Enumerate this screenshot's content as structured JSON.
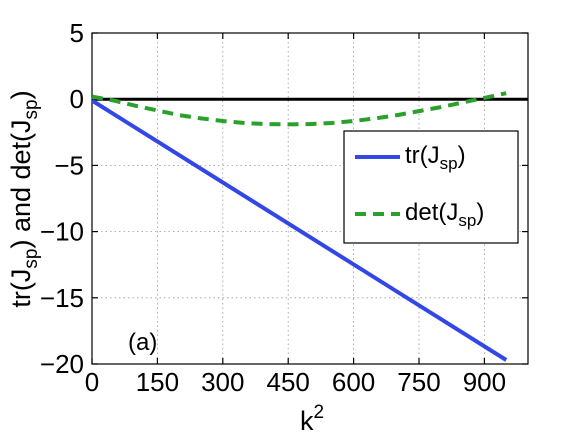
{
  "chart_data": {
    "type": "line",
    "title": "",
    "panel_label": "(a)",
    "xlabel": {
      "base": "k",
      "sup": "2"
    },
    "ylabel": {
      "prefix": "tr(J",
      "sub1": "sp",
      "middle": ") and det(J",
      "sub2": "sp",
      "suffix": ")"
    },
    "xlim": [
      0,
      1000
    ],
    "ylim": [
      -20,
      5
    ],
    "xticks": [
      0,
      150,
      300,
      450,
      600,
      750,
      900
    ],
    "yticks": [
      5,
      0,
      -5,
      -10,
      -15,
      -20
    ],
    "xtick_labels": [
      "0",
      "150",
      "300",
      "450",
      "600",
      "750",
      "900"
    ],
    "ytick_labels": [
      "5",
      "0",
      "−5",
      "−10",
      "−15",
      "−20"
    ],
    "grid": true,
    "legend_position": "center-right",
    "zero_line": {
      "y": 0,
      "color": "#000000"
    },
    "series": [
      {
        "name_base": "tr(J",
        "name_sub": "sp",
        "name_end": ")",
        "color": "#3346e6",
        "style": "solid",
        "x": [
          0,
          950
        ],
        "y": [
          -0.1,
          -19.7
        ]
      },
      {
        "name_base": "det(J",
        "name_sub": "sp",
        "name_end": ")",
        "color": "#2ca02c",
        "style": "dashed",
        "x": [
          0,
          50,
          100,
          150,
          200,
          250,
          300,
          350,
          400,
          450,
          500,
          550,
          600,
          650,
          700,
          750,
          800,
          850,
          900,
          950
        ],
        "y": [
          0.2,
          -0.1,
          -0.5,
          -0.85,
          -1.2,
          -1.45,
          -1.65,
          -1.8,
          -1.88,
          -1.9,
          -1.88,
          -1.8,
          -1.65,
          -1.45,
          -1.2,
          -0.9,
          -0.6,
          -0.25,
          0.1,
          0.45
        ]
      }
    ]
  }
}
